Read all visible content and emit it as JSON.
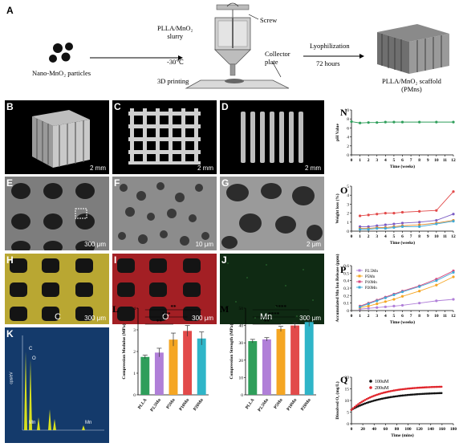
{
  "schematic": {
    "panel": "A",
    "particles_label": "Nano-MnO₂ particles",
    "slurry_label": "PLLA/MnO₂\nslurry",
    "temperature": "-30℃",
    "process": "3D printing",
    "screw_label": "Screw",
    "collector_label": "Collector\nplate",
    "lyophilization": "Lyophilization",
    "duration": "72 hours",
    "product_label": "PLLA/MnO₂ scaffold\n(PMns)"
  },
  "micrographs": [
    {
      "panel": "B",
      "scale": "2 mm",
      "element": ""
    },
    {
      "panel": "C",
      "scale": "2 mm",
      "element": ""
    },
    {
      "panel": "D",
      "scale": "2 mm",
      "element": ""
    },
    {
      "panel": "E",
      "scale": "300 μm",
      "element": ""
    },
    {
      "panel": "F",
      "scale": "10 μm",
      "element": ""
    },
    {
      "panel": "G",
      "scale": "2 μm",
      "element": ""
    },
    {
      "panel": "H",
      "scale": "300 μm",
      "element": "C"
    },
    {
      "panel": "I",
      "scale": "300 μm",
      "element": "O"
    },
    {
      "panel": "J",
      "scale": "300 μm",
      "element": "Mn"
    }
  ],
  "eds": {
    "panel": "K",
    "ylabel": "cps/eV",
    "peak_labels": [
      "C",
      "O",
      "Mn",
      "Mn"
    ]
  },
  "chart_data": [
    {
      "panel": "N",
      "type": "line",
      "xlabel": "Time (weeks)",
      "ylabel": "pH Value",
      "x": [
        0,
        1,
        2,
        3,
        4,
        5,
        6,
        8,
        10,
        12
      ],
      "xticks": [
        0,
        1,
        2,
        3,
        4,
        5,
        6,
        7,
        8,
        9,
        10,
        11,
        12
      ],
      "yticks": [
        0,
        2,
        4,
        6,
        8,
        10
      ],
      "ylim": [
        0,
        10
      ],
      "series": [
        {
          "name": "",
          "color": "#2e9e5a",
          "values": [
            7.4,
            7.1,
            7.2,
            7.2,
            7.3,
            7.3,
            7.3,
            7.3,
            7.3,
            7.3
          ]
        }
      ]
    },
    {
      "panel": "O",
      "type": "line",
      "xlabel": "Time (weeks)",
      "ylabel": "Weight loss (%)",
      "x": [
        1,
        2,
        3,
        4,
        5,
        6,
        8,
        10,
        12
      ],
      "xticks": [
        0,
        1,
        2,
        3,
        4,
        5,
        6,
        7,
        8,
        9,
        10,
        11,
        12
      ],
      "yticks": [
        0,
        1,
        2,
        3,
        4,
        5
      ],
      "ylim": [
        0,
        5
      ],
      "series": [
        {
          "name": "",
          "color": "#7b5cc4",
          "values": [
            0.5,
            0.5,
            0.6,
            0.7,
            0.8,
            0.9,
            1.0,
            1.2,
            1.9
          ]
        },
        {
          "name": "",
          "color": "#e08a2a",
          "values": [
            0.3,
            0.3,
            0.4,
            0.4,
            0.5,
            0.6,
            0.7,
            0.9,
            1.2
          ]
        },
        {
          "name": "",
          "color": "#e24a4a",
          "values": [
            1.7,
            1.8,
            1.9,
            2.0,
            2.0,
            2.1,
            2.2,
            2.3,
            4.4
          ]
        },
        {
          "name": "",
          "color": "#3fa9d6",
          "values": [
            0.2,
            0.2,
            0.3,
            0.3,
            0.4,
            0.5,
            0.5,
            0.8,
            1.1
          ]
        }
      ]
    },
    {
      "panel": "P",
      "type": "line",
      "xlabel": "Time (weeks)",
      "ylabel": "Accumulated Mn Ion Release (ppm)",
      "x": [
        1,
        2,
        3,
        4,
        5,
        6,
        8,
        10,
        12
      ],
      "xticks": [
        0,
        1,
        2,
        3,
        4,
        5,
        6,
        7,
        8,
        9,
        10,
        11,
        12
      ],
      "yticks": [
        0,
        0.1,
        0.2,
        0.3,
        0.4,
        0.5,
        0.6
      ],
      "ylim": [
        0,
        0.6
      ],
      "series": [
        {
          "name": "P2.5Mn",
          "color": "#b07fd8",
          "values": [
            0.02,
            0.03,
            0.04,
            0.05,
            0.06,
            0.07,
            0.1,
            0.13,
            0.15
          ]
        },
        {
          "name": "P5Mn",
          "color": "#f5a623",
          "values": [
            0.04,
            0.06,
            0.09,
            0.12,
            0.15,
            0.19,
            0.26,
            0.34,
            0.45
          ]
        },
        {
          "name": "P10Mn",
          "color": "#d7477f",
          "values": [
            0.06,
            0.1,
            0.14,
            0.18,
            0.22,
            0.26,
            0.33,
            0.42,
            0.53
          ]
        },
        {
          "name": "P20Mn",
          "color": "#3fa9d6",
          "values": [
            0.05,
            0.09,
            0.13,
            0.17,
            0.21,
            0.25,
            0.32,
            0.4,
            0.51
          ]
        }
      ]
    },
    {
      "panel": "Q",
      "type": "scatter",
      "xlabel": "Time (mins)",
      "ylabel": "Dissolved O₂ (mg/L)",
      "xticks": [
        0,
        20,
        40,
        60,
        80,
        100,
        120,
        140,
        160,
        180
      ],
      "yticks": [
        0,
        5,
        10,
        15,
        20
      ],
      "xlim": [
        0,
        180
      ],
      "ylim": [
        0,
        20
      ],
      "legend": "top-left",
      "series": [
        {
          "name": "100uM",
          "color": "#111111",
          "tau": 55,
          "start": 6,
          "end": 13.6
        },
        {
          "name": "200uM",
          "color": "#e0242b",
          "tau": 45,
          "start": 6,
          "end": 16.2
        }
      ]
    },
    {
      "panel": "L",
      "type": "bar",
      "ylabel": "Compression Modulus (MPa)",
      "categories": [
        "PLLA",
        "P2.5Mn",
        "P5Mn",
        "P10Mn",
        "P20Mn"
      ],
      "values": [
        1.75,
        1.95,
        2.55,
        2.95,
        2.6
      ],
      "errors": [
        0.08,
        0.2,
        0.3,
        0.25,
        0.3
      ],
      "colors": [
        "#2e9e5a",
        "#b07fd8",
        "#f5a623",
        "#e24a4a",
        "#2fb5c8"
      ],
      "yticks": [
        0,
        1,
        2,
        3,
        4
      ],
      "ylim": [
        0,
        4
      ],
      "significance": [
        {
          "from": 0,
          "to": 2,
          "label": "**"
        },
        {
          "from": 0,
          "to": 3,
          "label": "***"
        },
        {
          "from": 0,
          "to": 4,
          "label": "**"
        }
      ]
    },
    {
      "panel": "M",
      "type": "bar",
      "ylabel": "Compression Strength (MPa)",
      "categories": [
        "PLLA",
        "P2.5Mn",
        "P5Mn",
        "P10Mn",
        "P20Mn"
      ],
      "values": [
        31,
        32,
        38,
        40,
        42
      ],
      "errors": [
        1,
        1,
        1.5,
        1.5,
        2.5
      ],
      "colors": [
        "#2e9e5a",
        "#b07fd8",
        "#f5a623",
        "#e24a4a",
        "#2fb5c8"
      ],
      "yticks": [
        0,
        10,
        20,
        30,
        40,
        50
      ],
      "ylim": [
        0,
        50
      ],
      "significance": [
        {
          "from": 0,
          "to": 2,
          "label": "**"
        },
        {
          "from": 0,
          "to": 3,
          "label": "****"
        },
        {
          "from": 0,
          "to": 4,
          "label": "****"
        }
      ]
    }
  ]
}
